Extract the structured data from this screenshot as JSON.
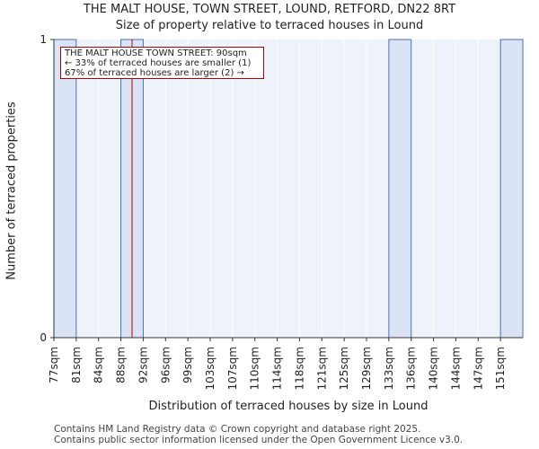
{
  "chart_data": {
    "type": "bar",
    "title": "THE MALT HOUSE, TOWN STREET, LOUND, RETFORD, DN22 8RT",
    "subtitle": "Size of property relative to terraced houses in Lound",
    "xlabel": "Distribution of terraced houses by size in Lound",
    "ylabel": "Number of terraced properties",
    "categories": [
      "77sqm",
      "81sqm",
      "84sqm",
      "88sqm",
      "92sqm",
      "96sqm",
      "99sqm",
      "103sqm",
      "107sqm",
      "110sqm",
      "114sqm",
      "118sqm",
      "121sqm",
      "125sqm",
      "129sqm",
      "133sqm",
      "136sqm",
      "140sqm",
      "144sqm",
      "147sqm",
      "151sqm"
    ],
    "values": [
      1,
      0,
      0,
      1,
      0,
      0,
      0,
      0,
      0,
      0,
      0,
      0,
      0,
      0,
      0,
      1,
      0,
      0,
      0,
      0,
      1
    ],
    "ylim": [
      0,
      1
    ],
    "yticks": [
      "0",
      "1"
    ],
    "grid": true,
    "bar_color": "#dae3f3",
    "bar_edge_color": "#4a6fb5",
    "property_marker": {
      "value_sqm": 90,
      "color": "#b20000"
    },
    "annotation": {
      "line1": "THE MALT HOUSE TOWN STREET: 90sqm",
      "line2": "← 33% of terraced houses are smaller (1)",
      "line3": "67% of terraced houses are larger (2) →"
    }
  },
  "footer": {
    "line1": "Contains HM Land Registry data © Crown copyright and database right 2025.",
    "line2": "Contains public sector information licensed under the Open Government Licence v3.0."
  }
}
